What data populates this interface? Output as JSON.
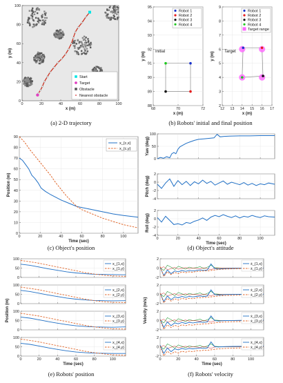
{
  "captions": {
    "a": "(a) 2-D trajectory",
    "b": "(b) Robots' initial and final position",
    "c": "(c) Object's position",
    "d": "(d) Object's attitude",
    "e": "(e) Robots' position",
    "f": "(f) Robots' velocity"
  },
  "colors": {
    "series_blue": "#1f6fc5",
    "series_orange": "#e0662a",
    "series_green": "#2e9e3e",
    "series_red": "#d62728",
    "series_purple": "#7b3fa0",
    "robot1": "#1a33cc",
    "robot2": "#e51c1c",
    "robot3": "#111111",
    "robot4": "#1ec81e",
    "target_range": "#ff66ff",
    "start": "#00e5e5",
    "target": "#e040c0"
  },
  "chart_data": [
    {
      "id": "a",
      "type": "scatter",
      "xlabel": "x (m)",
      "ylabel": "y (m)",
      "xlim": [
        0,
        100
      ],
      "ylim": [
        0,
        100
      ],
      "xticks": [
        0,
        20,
        40,
        60,
        80,
        100
      ],
      "yticks": [
        0,
        20,
        40,
        60,
        80,
        100
      ],
      "legend": [
        "Start",
        "Target",
        "Obstacle",
        "Nearest obstacle"
      ],
      "legend_position": "bottom-right",
      "start": [
        70,
        93
      ],
      "target": [
        16,
        6
      ],
      "trajectory": [
        [
          70,
          93
        ],
        [
          66,
          88
        ],
        [
          62,
          82
        ],
        [
          58,
          77
        ],
        [
          55,
          72
        ],
        [
          53,
          66
        ],
        [
          51,
          60
        ],
        [
          48,
          54
        ],
        [
          45,
          49
        ],
        [
          41,
          44
        ],
        [
          37,
          40
        ],
        [
          33,
          35
        ],
        [
          29,
          30
        ],
        [
          26,
          25
        ],
        [
          23,
          20
        ],
        [
          21,
          15
        ],
        [
          19,
          11
        ],
        [
          17,
          8
        ],
        [
          16,
          6
        ]
      ],
      "obstacle_clusters": [
        [
          15,
          87,
          11
        ],
        [
          94,
          92,
          8
        ],
        [
          18,
          45,
          6
        ],
        [
          6,
          20,
          5
        ],
        [
          62,
          58,
          10
        ],
        [
          78,
          30,
          6
        ],
        [
          38,
          70,
          5
        ]
      ]
    },
    {
      "id": "b1",
      "type": "scatter",
      "annotation": "Initial",
      "xlabel": "x (m)",
      "ylabel": "y (m)",
      "xlim": [
        68,
        72
      ],
      "ylim": [
        88,
        95
      ],
      "xticks": [
        68,
        70,
        72
      ],
      "yticks": [
        88,
        89,
        90,
        91,
        92,
        93,
        94,
        95
      ],
      "legend": [
        "Robot 1",
        "Robot 2",
        "Robot 3",
        "Robot 4"
      ],
      "legend_position": "top-right",
      "robots": [
        [
          71,
          91
        ],
        [
          71,
          89
        ],
        [
          69,
          89
        ],
        [
          69,
          91
        ]
      ]
    },
    {
      "id": "b2",
      "type": "scatter",
      "annotation": "Target",
      "xlabel": "x (m)",
      "ylabel": "y (m)",
      "xlim": [
        12,
        17
      ],
      "ylim": [
        2,
        9
      ],
      "xticks": [
        12,
        13,
        14,
        15,
        16,
        17
      ],
      "yticks": [
        2,
        3,
        4,
        5,
        6,
        7,
        8,
        9
      ],
      "legend": [
        "Robot 1",
        "Robot 2",
        "Robot 3",
        "Robot 4",
        "Target range"
      ],
      "legend_position": "top-right",
      "robots": [
        [
          14.1,
          6.1
        ],
        [
          16,
          6.1
        ],
        [
          16.1,
          4.1
        ],
        [
          14,
          4
        ]
      ],
      "targets": [
        [
          14,
          6
        ],
        [
          16,
          6
        ],
        [
          16,
          4
        ],
        [
          14,
          4
        ]
      ]
    },
    {
      "id": "c",
      "type": "line",
      "xlabel": "Time (sec)",
      "ylabel": "Position (m)",
      "xlim": [
        0,
        114
      ],
      "ylim": [
        0,
        90
      ],
      "xticks": [
        0,
        20,
        40,
        60,
        80,
        100
      ],
      "yticks": [
        0,
        10,
        20,
        30,
        40,
        50,
        60,
        70,
        80,
        90
      ],
      "legend_position": "top-right",
      "series": [
        {
          "name": "x_{c,x}",
          "color": "blue",
          "dash": false,
          "x": [
            0,
            3,
            6,
            9,
            12,
            15,
            18,
            21,
            25,
            30,
            40,
            50,
            55,
            60,
            70,
            80,
            90,
            100,
            114
          ],
          "values": [
            70,
            68,
            64,
            60,
            54,
            51,
            47,
            42,
            39,
            36,
            31,
            27,
            25,
            24,
            22,
            20,
            18,
            16.5,
            15
          ]
        },
        {
          "name": "x_{c,y}",
          "color": "orange",
          "dash": true,
          "x": [
            0,
            5,
            10,
            15,
            20,
            25,
            30,
            35,
            40,
            45,
            50,
            55,
            60,
            70,
            80,
            90,
            100,
            114
          ],
          "values": [
            90,
            85,
            78,
            72,
            66,
            60,
            54,
            47,
            41,
            35,
            30,
            25,
            22,
            18,
            14,
            11,
            8,
            5
          ]
        }
      ]
    },
    {
      "id": "d1",
      "type": "line",
      "ylabel": "Yaw (deg)",
      "xlim": [
        0,
        114
      ],
      "ylim": [
        0,
        100
      ],
      "xticks": [
        20,
        40,
        60,
        80,
        100
      ],
      "yticks": [
        0,
        50,
        100
      ],
      "series": [
        {
          "x": [
            0,
            3,
            6,
            9,
            12,
            14,
            16,
            18,
            20,
            22,
            25,
            28,
            32,
            36,
            40,
            45,
            50,
            55,
            58,
            61,
            65,
            70,
            80,
            90,
            100,
            114
          ],
          "values": [
            0,
            5,
            2,
            8,
            4,
            20,
            25,
            20,
            38,
            48,
            55,
            62,
            68,
            74,
            78,
            80,
            82,
            84,
            98,
            88,
            90,
            91,
            92,
            92,
            93,
            93
          ]
        }
      ]
    },
    {
      "id": "d2",
      "type": "line",
      "ylabel": "Pitch (deg)",
      "xlim": [
        0,
        114
      ],
      "ylim": [
        -4,
        2
      ],
      "xticks": [
        20,
        40,
        60,
        80,
        100
      ],
      "yticks": [
        -4,
        -2,
        0,
        2
      ],
      "series": [
        {
          "x": [
            0,
            4,
            8,
            12,
            16,
            20,
            24,
            28,
            32,
            36,
            40,
            44,
            48,
            52,
            56,
            60,
            64,
            68,
            72,
            76,
            80,
            84,
            88,
            92,
            96,
            100,
            104,
            108,
            114
          ],
          "values": [
            -0.5,
            -1.5,
            -0.2,
            0.8,
            -1,
            0.4,
            -0.6,
            0.2,
            -0.8,
            0.1,
            -0.4,
            0.5,
            -0.3,
            0.2,
            -0.7,
            -0.2,
            0.3,
            -0.5,
            0,
            -0.3,
            -0.6,
            -0.1,
            -0.7,
            -0.3,
            -0.8,
            -0.4,
            -0.6,
            -0.2,
            -0.5
          ]
        }
      ]
    },
    {
      "id": "d3",
      "type": "line",
      "ylabel": "Roll (deg)",
      "xlabel": "Time (sec)",
      "xlim": [
        0,
        114
      ],
      "ylim": [
        -4,
        2
      ],
      "xticks": [
        0,
        20,
        40,
        60,
        80,
        100
      ],
      "yticks": [
        -4,
        -2,
        0,
        2
      ],
      "series": [
        {
          "x": [
            0,
            4,
            8,
            12,
            16,
            20,
            24,
            28,
            32,
            36,
            40,
            44,
            48,
            52,
            56,
            60,
            64,
            68,
            72,
            76,
            80,
            84,
            88,
            92,
            96,
            100,
            104,
            108,
            114
          ],
          "values": [
            0.3,
            -0.8,
            0.6,
            -0.4,
            -1.4,
            -1.2,
            -1.5,
            -0.9,
            -1.1,
            -0.6,
            -0.3,
            0.2,
            -0.4,
            0.4,
            0.8,
            0.5,
            1,
            0.6,
            0.3,
            0.7,
            0.2,
            0.6,
            0.4,
            0.8,
            0.5,
            0.3,
            0.7,
            0.5,
            0.4
          ]
        }
      ]
    },
    {
      "id": "e",
      "type": "line",
      "ylabel": "Position (m)",
      "xlabel": "Time (sec)",
      "xlim": [
        0,
        114
      ],
      "ylim": [
        0,
        100
      ],
      "xticks": [
        0,
        20,
        40,
        60,
        80,
        100
      ],
      "yticks": [
        0,
        50,
        100
      ],
      "legend_position": "right",
      "panels": [
        {
          "series": [
            {
              "name": "x_{1,x}",
              "color": "blue",
              "dash": false,
              "values": [
                71,
                65,
                56,
                46,
                38,
                30,
                24,
                20,
                17,
                16,
                15,
                14
              ]
            },
            {
              "name": "x_{1,y}",
              "color": "orange",
              "dash": true,
              "values": [
                91,
                84,
                76,
                66,
                56,
                46,
                36,
                26,
                18,
                12,
                8,
                6
              ]
            }
          ]
        },
        {
          "series": [
            {
              "name": "x_{2,x}",
              "color": "blue",
              "dash": false,
              "values": [
                71,
                65,
                56,
                46,
                38,
                30,
                24,
                20,
                17,
                16,
                15,
                16
              ]
            },
            {
              "name": "x_{2,y}",
              "color": "orange",
              "dash": true,
              "values": [
                89,
                82,
                74,
                64,
                54,
                44,
                34,
                24,
                16,
                10,
                7,
                6
              ]
            }
          ]
        },
        {
          "series": [
            {
              "name": "x_{3,x}",
              "color": "blue",
              "dash": false,
              "values": [
                69,
                63,
                54,
                44,
                36,
                28,
                22,
                18,
                16,
                15,
                14,
                16
              ]
            },
            {
              "name": "x_{3,y}",
              "color": "orange",
              "dash": true,
              "values": [
                89,
                82,
                74,
                64,
                54,
                44,
                34,
                24,
                16,
                10,
                6,
                4
              ]
            }
          ]
        },
        {
          "series": [
            {
              "name": "x_{4,x}",
              "color": "blue",
              "dash": false,
              "values": [
                69,
                63,
                54,
                44,
                36,
                28,
                22,
                18,
                16,
                15,
                14,
                14
              ]
            },
            {
              "name": "x_{4,y}",
              "color": "orange",
              "dash": true,
              "values": [
                91,
                84,
                76,
                66,
                56,
                46,
                36,
                26,
                18,
                12,
                7,
                4
              ]
            }
          ]
        }
      ],
      "x": [
        0,
        10,
        20,
        30,
        40,
        50,
        60,
        70,
        80,
        90,
        100,
        114
      ]
    },
    {
      "id": "f",
      "type": "line",
      "ylabel": "Velocity (m/s)",
      "xlabel": "Time (sec)",
      "xlim": [
        0,
        114
      ],
      "ylim": [
        -2,
        2
      ],
      "xticks": [
        0,
        20,
        40,
        60,
        80,
        100
      ],
      "yticks": [
        -2,
        0,
        2
      ],
      "legend_position": "right",
      "panels": [
        {
          "series": [
            {
              "name": "ẋ_{1,x}",
              "color": "blue",
              "dash": false
            },
            {
              "name": "ẋ_{1,y}",
              "color": "orange",
              "dash": true
            }
          ]
        },
        {
          "series": [
            {
              "name": "ẋ_{2,x}",
              "color": "blue",
              "dash": false
            },
            {
              "name": "ẋ_{2,y}",
              "color": "orange",
              "dash": true
            }
          ]
        },
        {
          "series": [
            {
              "name": "ẋ_{3,x}",
              "color": "blue",
              "dash": false
            },
            {
              "name": "ẋ_{3,y}",
              "color": "orange",
              "dash": true
            }
          ]
        },
        {
          "series": [
            {
              "name": "ẋ_{4,x}",
              "color": "blue",
              "dash": false
            },
            {
              "name": "ẋ_{4,y}",
              "color": "orange",
              "dash": true
            }
          ]
        }
      ],
      "x": [
        0,
        4,
        8,
        12,
        16,
        20,
        24,
        28,
        32,
        36,
        40,
        44,
        48,
        52,
        56,
        60,
        64,
        68,
        72,
        80,
        90,
        100,
        114
      ],
      "vx": [
        0.2,
        -1.6,
        -0.4,
        -1.2,
        -0.6,
        -0.8,
        -0.5,
        -0.7,
        -0.5,
        -0.6,
        -0.5,
        -0.4,
        -0.5,
        -0.4,
        0.9,
        -0.1,
        -0.2,
        -0.15,
        -0.1,
        -0.08,
        -0.05,
        -0.03,
        -0.02
      ],
      "vy": [
        0.3,
        -1.8,
        -0.8,
        -1.4,
        -0.9,
        -1.2,
        -0.8,
        -1.0,
        -0.8,
        -0.9,
        -0.7,
        -0.7,
        -0.6,
        -0.6,
        -0.5,
        -0.4,
        -0.3,
        -0.25,
        -0.2,
        -0.15,
        -0.1,
        -0.08,
        -0.05
      ],
      "vz": [
        0.1,
        -0.5,
        0.6,
        0.2,
        -0.3,
        0.4,
        0.1,
        -0.2,
        0.2,
        0.0,
        0.1,
        0.3,
        -0.1,
        0.2,
        0.6,
        0.1,
        0.05,
        0.0,
        0.0,
        0.0,
        0.0,
        0.0,
        0.0
      ]
    }
  ]
}
